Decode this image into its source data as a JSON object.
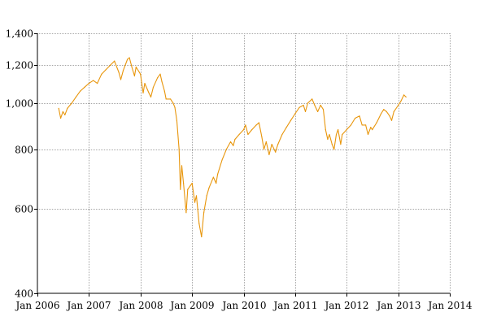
{
  "chart_data": {
    "type": "line",
    "title": "",
    "xlabel": "",
    "ylabel": "",
    "y_scale": "log",
    "ylim": [
      400,
      1400
    ],
    "xlim": [
      "2006-01-01",
      "2014-01-01"
    ],
    "grid": true,
    "y_ticks": [
      {
        "value": 400,
        "label": "400"
      },
      {
        "value": 600,
        "label": "600"
      },
      {
        "value": 800,
        "label": "800"
      },
      {
        "value": 1000,
        "label": "1,000"
      },
      {
        "value": 1200,
        "label": "1,200"
      },
      {
        "value": 1400,
        "label": "1,400"
      }
    ],
    "x_ticks": [
      {
        "date": "2006-01-01",
        "label": "Jan 2006"
      },
      {
        "date": "2007-01-01",
        "label": "Jan 2007"
      },
      {
        "date": "2008-01-01",
        "label": "Jan 2008"
      },
      {
        "date": "2009-01-01",
        "label": "Jan 2009"
      },
      {
        "date": "2010-01-01",
        "label": "Jan 2010"
      },
      {
        "date": "2011-01-01",
        "label": "Jan 2011"
      },
      {
        "date": "2012-01-01",
        "label": "Jan 2012"
      },
      {
        "date": "2013-01-01",
        "label": "Jan 2013"
      },
      {
        "date": "2014-01-01",
        "label": "Jan 2014"
      }
    ],
    "colors": {
      "series": "#e8960c",
      "grid": "#a6a6a6",
      "axis": "#000000"
    },
    "series": [
      {
        "color": "#e8960c",
        "points": [
          [
            "2006-06-01",
            975
          ],
          [
            "2006-06-15",
            930
          ],
          [
            "2006-07-01",
            960
          ],
          [
            "2006-07-15",
            945
          ],
          [
            "2006-08-01",
            975
          ],
          [
            "2006-09-01",
            1000
          ],
          [
            "2006-10-01",
            1030
          ],
          [
            "2006-11-01",
            1060
          ],
          [
            "2006-12-01",
            1080
          ],
          [
            "2007-01-01",
            1100
          ],
          [
            "2007-02-01",
            1115
          ],
          [
            "2007-03-01",
            1100
          ],
          [
            "2007-04-01",
            1150
          ],
          [
            "2007-05-01",
            1175
          ],
          [
            "2007-06-01",
            1200
          ],
          [
            "2007-07-01",
            1225
          ],
          [
            "2007-08-01",
            1160
          ],
          [
            "2007-08-15",
            1120
          ],
          [
            "2007-09-01",
            1170
          ],
          [
            "2007-10-01",
            1235
          ],
          [
            "2007-10-15",
            1245
          ],
          [
            "2007-11-01",
            1190
          ],
          [
            "2007-11-20",
            1140
          ],
          [
            "2007-12-01",
            1190
          ],
          [
            "2008-01-01",
            1150
          ],
          [
            "2008-01-20",
            1050
          ],
          [
            "2008-02-01",
            1100
          ],
          [
            "2008-03-01",
            1050
          ],
          [
            "2008-03-15",
            1030
          ],
          [
            "2008-04-01",
            1080
          ],
          [
            "2008-05-01",
            1130
          ],
          [
            "2008-05-20",
            1150
          ],
          [
            "2008-06-01",
            1110
          ],
          [
            "2008-06-20",
            1060
          ],
          [
            "2008-07-01",
            1020
          ],
          [
            "2008-08-01",
            1020
          ],
          [
            "2008-08-20",
            1000
          ],
          [
            "2008-09-01",
            980
          ],
          [
            "2008-09-15",
            920
          ],
          [
            "2008-10-01",
            800
          ],
          [
            "2008-10-10",
            660
          ],
          [
            "2008-10-20",
            740
          ],
          [
            "2008-11-01",
            680
          ],
          [
            "2008-11-20",
            590
          ],
          [
            "2008-12-01",
            660
          ],
          [
            "2009-01-01",
            680
          ],
          [
            "2009-01-20",
            620
          ],
          [
            "2009-02-01",
            640
          ],
          [
            "2009-02-20",
            560
          ],
          [
            "2009-03-09",
            525
          ],
          [
            "2009-03-25",
            590
          ],
          [
            "2009-04-15",
            640
          ],
          [
            "2009-05-01",
            665
          ],
          [
            "2009-06-01",
            700
          ],
          [
            "2009-06-20",
            680
          ],
          [
            "2009-07-01",
            710
          ],
          [
            "2009-08-01",
            760
          ],
          [
            "2009-09-01",
            800
          ],
          [
            "2009-10-01",
            830
          ],
          [
            "2009-10-20",
            815
          ],
          [
            "2009-11-01",
            840
          ],
          [
            "2009-12-01",
            860
          ],
          [
            "2010-01-01",
            880
          ],
          [
            "2010-01-15",
            900
          ],
          [
            "2010-02-01",
            860
          ],
          [
            "2010-03-01",
            880
          ],
          [
            "2010-04-01",
            900
          ],
          [
            "2010-04-20",
            910
          ],
          [
            "2010-05-10",
            850
          ],
          [
            "2010-05-25",
            800
          ],
          [
            "2010-06-10",
            830
          ],
          [
            "2010-07-01",
            780
          ],
          [
            "2010-07-20",
            820
          ],
          [
            "2010-08-15",
            790
          ],
          [
            "2010-09-01",
            820
          ],
          [
            "2010-10-01",
            860
          ],
          [
            "2010-11-01",
            890
          ],
          [
            "2010-12-01",
            920
          ],
          [
            "2011-01-01",
            950
          ],
          [
            "2011-02-01",
            980
          ],
          [
            "2011-03-01",
            990
          ],
          [
            "2011-03-15",
            960
          ],
          [
            "2011-04-01",
            1000
          ],
          [
            "2011-05-01",
            1020
          ],
          [
            "2011-05-20",
            990
          ],
          [
            "2011-06-10",
            960
          ],
          [
            "2011-07-01",
            990
          ],
          [
            "2011-07-20",
            970
          ],
          [
            "2011-08-05",
            880
          ],
          [
            "2011-08-20",
            840
          ],
          [
            "2011-09-01",
            860
          ],
          [
            "2011-09-20",
            820
          ],
          [
            "2011-10-04",
            800
          ],
          [
            "2011-10-20",
            860
          ],
          [
            "2011-11-01",
            880
          ],
          [
            "2011-11-20",
            820
          ],
          [
            "2011-12-01",
            860
          ],
          [
            "2012-01-01",
            880
          ],
          [
            "2012-02-01",
            900
          ],
          [
            "2012-03-01",
            930
          ],
          [
            "2012-04-01",
            940
          ],
          [
            "2012-04-20",
            900
          ],
          [
            "2012-05-15",
            900
          ],
          [
            "2012-06-01",
            860
          ],
          [
            "2012-06-20",
            890
          ],
          [
            "2012-07-01",
            880
          ],
          [
            "2012-08-01",
            910
          ],
          [
            "2012-09-01",
            950
          ],
          [
            "2012-09-20",
            970
          ],
          [
            "2012-10-10",
            960
          ],
          [
            "2012-11-01",
            940
          ],
          [
            "2012-11-15",
            920
          ],
          [
            "2012-12-01",
            960
          ],
          [
            "2013-01-01",
            990
          ],
          [
            "2013-01-20",
            1010
          ],
          [
            "2013-02-10",
            1040
          ],
          [
            "2013-02-25",
            1030
          ]
        ]
      }
    ]
  }
}
